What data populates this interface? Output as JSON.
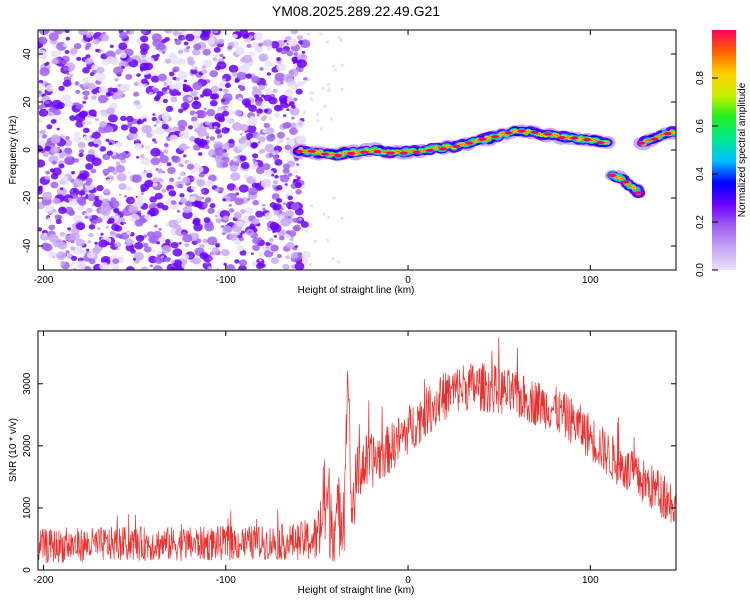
{
  "title": "YM08.2025.289.22.49.G21",
  "colors": {
    "snr_line": "#e8302e",
    "colormap": [
      "#e8e0fa",
      "#c9a8f5",
      "#a060f0",
      "#6a00ff",
      "#0000ff",
      "#00c0ff",
      "#00e890",
      "#20ee20",
      "#c8f000",
      "#ffd000",
      "#ff6000",
      "#ff0060"
    ]
  },
  "chart_data": [
    {
      "type": "heatmap",
      "title": "YM08.2025.289.22.49.G21",
      "xlabel": "Height of straight line (km)",
      "ylabel": "Frequency (Hz)",
      "xlim": [
        -203,
        147
      ],
      "ylim": [
        -50,
        50
      ],
      "xticks": [
        -200,
        -100,
        0,
        100
      ],
      "yticks": [
        -40,
        -20,
        0,
        20,
        40
      ],
      "colorbar": {
        "label": "Normalized spectral amplitude",
        "range": [
          0.0,
          1.0
        ],
        "ticks": [
          0.0,
          0.2,
          0.4,
          0.6,
          0.8
        ]
      },
      "noise_region_km": [
        -203,
        -58
      ],
      "ridge": {
        "description": "dominant frequency track (Hz) vs height (km)",
        "x": [
          -60,
          -50,
          -40,
          -30,
          -20,
          -10,
          0,
          10,
          20,
          30,
          40,
          50,
          60,
          70,
          80,
          90,
          100,
          110
        ],
        "y": [
          0,
          -1,
          -2,
          -1,
          0,
          -1,
          -1,
          0,
          1,
          2,
          4,
          6,
          8,
          7,
          6,
          5,
          4,
          3
        ]
      },
      "ridge_segments": [
        {
          "x": [
            112,
            117,
            122,
            127
          ],
          "y": [
            -10,
            -12,
            -15,
            -18
          ]
        },
        {
          "x": [
            128,
            133,
            138,
            143,
            147
          ],
          "y": [
            3,
            4,
            6,
            7,
            8
          ]
        }
      ]
    },
    {
      "type": "line",
      "title": "",
      "xlabel": "Height of straight line (km)",
      "ylabel": "SNR (10 * v/v)",
      "xlim": [
        -203,
        147
      ],
      "ylim": [
        0,
        3850
      ],
      "xticks": [
        -200,
        -100,
        0,
        100
      ],
      "yticks": [
        0,
        1000,
        2000,
        3000
      ],
      "series": [
        {
          "name": "SNR",
          "envelope_x": [
            -203,
            -180,
            -160,
            -140,
            -120,
            -100,
            -80,
            -60,
            -50,
            -45,
            -40,
            -35,
            -33,
            -31,
            -28,
            -25,
            -20,
            -10,
            0,
            10,
            20,
            30,
            40,
            50,
            60,
            70,
            80,
            90,
            100,
            110,
            120,
            130,
            140,
            147
          ],
          "envelope_mean": [
            380,
            400,
            420,
            420,
            420,
            430,
            440,
            460,
            500,
            1100,
            700,
            1100,
            3300,
            900,
            1500,
            1700,
            1750,
            1950,
            2250,
            2550,
            2800,
            2950,
            2950,
            2900,
            2800,
            2700,
            2600,
            2400,
            2150,
            1850,
            1600,
            1400,
            1200,
            1050
          ],
          "envelope_spread": [
            280,
            280,
            280,
            280,
            280,
            280,
            280,
            300,
            400,
            900,
            600,
            800,
            300,
            700,
            500,
            500,
            450,
            400,
            400,
            400,
            400,
            400,
            400,
            400,
            380,
            380,
            380,
            380,
            380,
            380,
            380,
            380,
            380,
            380
          ]
        }
      ]
    }
  ]
}
